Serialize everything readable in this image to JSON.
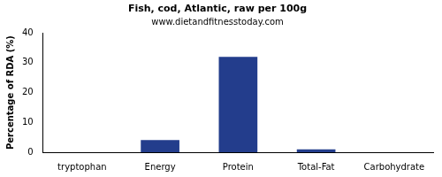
{
  "chart_data": {
    "type": "bar",
    "title": "Fish, cod, Atlantic, raw per 100g",
    "subtitle": "www.dietandfitnesstoday.com",
    "y_label": "Percentage of RDA (%)",
    "categories": [
      "tryptophan",
      "Energy",
      "Protein",
      "Total-Fat",
      "Carbohydrate"
    ],
    "values": [
      0,
      4.1,
      32,
      1,
      0
    ],
    "color": "#233d8c",
    "ylim": [
      0,
      40
    ],
    "yticks": [
      0,
      10,
      20,
      30,
      40
    ],
    "grid": false
  }
}
